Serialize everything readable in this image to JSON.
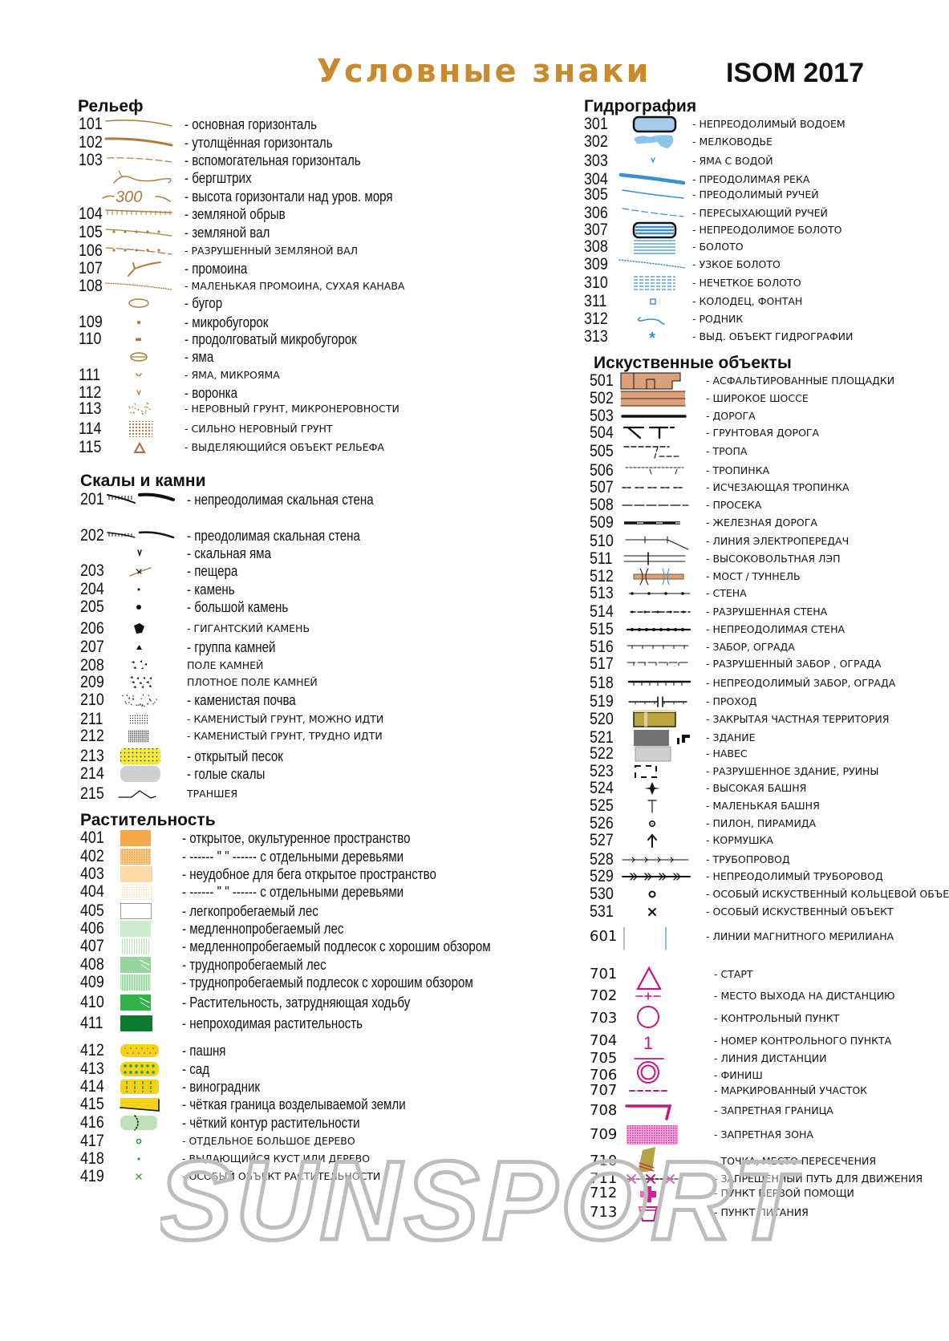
{
  "header": {
    "title": "Условные знаки",
    "standard": "ISOM 2017"
  },
  "watermark": "SUNSPORT",
  "colors": {
    "title": "#c98a2e",
    "relief": "#b07a3a",
    "water": "#3a8fcf",
    "course": "#c2187f",
    "text": "#111111"
  },
  "sections": {
    "relief": {
      "title": "Рельеф",
      "items": [
        {
          "num": "101",
          "icon": "contour",
          "text": "- основная горизонталь"
        },
        {
          "num": "102",
          "icon": "index-contour",
          "text": "- утолщённая горизонталь"
        },
        {
          "num": "103",
          "icon": "form-line",
          "text": "- вспомогательная горизонталь"
        },
        {
          "num": "",
          "icon": "slope-line",
          "text": "- бергштрих"
        },
        {
          "num": "",
          "icon": "contour-value",
          "label": "300",
          "text": "- высота горизонтали над уров. моря"
        },
        {
          "num": "104",
          "icon": "earth-bank",
          "text": "- земляной обрыв"
        },
        {
          "num": "105",
          "icon": "earth-wall",
          "text": "- земляной вал"
        },
        {
          "num": "106",
          "icon": "ruined-earth-wall",
          "text": "- РАЗРУШЕННЫЙ ЗЕМЛЯНОЙ ВАЛ"
        },
        {
          "num": "107",
          "icon": "erosion-gully",
          "text": "- промоина"
        },
        {
          "num": "108",
          "icon": "small-gully",
          "text": "- МАЛЕНЬКАЯ ПРОМОИНА, СУХАЯ КАНАВА"
        },
        {
          "num": "",
          "icon": "knoll",
          "text": "- бугор"
        },
        {
          "num": "109",
          "icon": "small-knoll",
          "text": "- микробугорок"
        },
        {
          "num": "110",
          "icon": "elongated-knoll",
          "text": "- продолговатый микробугорок"
        },
        {
          "num": "",
          "icon": "depression",
          "text": "- яма"
        },
        {
          "num": "111",
          "icon": "small-depression",
          "text": "- ЯМА, МИКРОЯМА"
        },
        {
          "num": "112",
          "icon": "pit",
          "text": "- воронка"
        },
        {
          "num": "113",
          "icon": "broken-ground",
          "text": "-  НЕРОВНЫЙ ГРУНТ, МИКРОНЕРОВНОСТИ"
        },
        {
          "num": "114",
          "icon": "very-broken-ground",
          "text": "-  СИЛЬНО НЕРОВНЫЙ ГРУНТ"
        },
        {
          "num": "115",
          "icon": "prominent-landform",
          "text": "-  ВЫДЕЛЯЮЩИЙСЯ ОБЪЕКТ РЕЛЬЕФА"
        }
      ]
    },
    "rocks": {
      "title": "Скалы и камни",
      "items": [
        {
          "num": "201",
          "icon": "impassable-cliff",
          "text": "- непреодолимая скальная стена"
        },
        {
          "num": "202",
          "icon": "passable-cliff",
          "text": "- преодолимая скальная стена"
        },
        {
          "num": "",
          "icon": "rocky-pit",
          "text": "- скальная яма"
        },
        {
          "num": "203",
          "icon": "cave",
          "text": "- пещера"
        },
        {
          "num": "204",
          "icon": "boulder",
          "text": "- камень"
        },
        {
          "num": "205",
          "icon": "large-boulder",
          "text": "- большой камень"
        },
        {
          "num": "206",
          "icon": "gigantic-boulder",
          "text": "- ГИГАНТСКИЙ КАМЕНЬ"
        },
        {
          "num": "207",
          "icon": "boulder-cluster",
          "text": "- группа камней"
        },
        {
          "num": "208",
          "icon": "boulder-field",
          "text": " ПОЛЕ КАМНЕЙ"
        },
        {
          "num": "209",
          "icon": "dense-boulder-field",
          "text": "ПЛОТНОЕ ПОЛЕ КАМНЕЙ"
        },
        {
          "num": "210",
          "icon": "stony-ground",
          "text": "- каменистая почва"
        },
        {
          "num": "211",
          "icon": "stony-ground-slow",
          "text": "- КАМЕНИСТЫЙ ГРУНТ, МОЖНО ИДТИ"
        },
        {
          "num": "212",
          "icon": "stony-ground-difficult",
          "text": "- КАМЕНИСТЫЙ ГРУНТ, ТРУДНО ИДТИ"
        },
        {
          "num": "213",
          "icon": "open-sand",
          "text": "- открытый песок"
        },
        {
          "num": "214",
          "icon": "bare-rock",
          "text": "- голые скалы"
        },
        {
          "num": "215",
          "icon": "trench",
          "text": " ТРАНШЕЯ"
        }
      ]
    },
    "vegetation": {
      "title": "Растительность",
      "items": [
        {
          "num": "401",
          "icon": "open-land",
          "text": "- открытое, окультуренное пространство"
        },
        {
          "num": "402",
          "icon": "open-land-trees",
          "text": "-  ------ \" \" ------ с отдельными деревьями"
        },
        {
          "num": "403",
          "icon": "rough-open-land",
          "text": "- неудобное для бега открытое пространство"
        },
        {
          "num": "404",
          "icon": "rough-open-land-trees",
          "text": "-  ------ \" \" ------ с отдельными деревьями"
        },
        {
          "num": "405",
          "icon": "forest",
          "text": "- легкопробегаемый лес"
        },
        {
          "num": "406",
          "icon": "vegetation-slow",
          "text": "- медленнопробегаемый лес"
        },
        {
          "num": "407",
          "icon": "undergrowth-slow",
          "text": "- медленнопробегаемый подлесок с хорошим обзором"
        },
        {
          "num": "408",
          "icon": "vegetation-walk",
          "text": "- труднопробегаемый лес"
        },
        {
          "num": "409",
          "icon": "undergrowth-walk",
          "text": "- труднопробегаемый подлесок с хорошим обзором"
        },
        {
          "num": "410",
          "icon": "vegetation-fight",
          "text": "- Растительность, затрудняющая ходьбу"
        },
        {
          "num": "411",
          "icon": "vegetation-impassable",
          "text": " - непроходимая растительность"
        },
        {
          "num": "412",
          "icon": "cultivated-land",
          "text": "- пашня"
        },
        {
          "num": "413",
          "icon": "orchard",
          "text": "- сад"
        },
        {
          "num": "414",
          "icon": "vineyard",
          "text": "- виноградник"
        },
        {
          "num": "415",
          "icon": "cultivation-boundary",
          "text": "- чёткая граница возделываемой земли"
        },
        {
          "num": "416",
          "icon": "vegetation-boundary",
          "text": "- чёткий контур растительности"
        },
        {
          "num": "417",
          "icon": "large-tree",
          "text": "- ОТДЕЛЬНОЕ БОЛЬШОЕ ДЕРЕВО"
        },
        {
          "num": "418",
          "icon": "bush",
          "text": "- ВЫДАЮЩИЙСЯ КУСТ ИЛИ ДЕРЕВО"
        },
        {
          "num": "419",
          "icon": "special-vegetation",
          "text": "- ОСОБЫЙ ОБЪЕКТ РАСТИТЕЛЬНОСТИ"
        }
      ]
    },
    "water": {
      "title": "Гидрография",
      "items": [
        {
          "num": "301",
          "icon": "uncrossable-water",
          "text": "- НЕПРЕОДОЛИМЫЙ ВОДОЕМ"
        },
        {
          "num": "302",
          "icon": "shallow-water",
          "text": "- МЕЛКОВОДЬЕ"
        },
        {
          "num": "303",
          "icon": "waterhole",
          "text": "- ЯМА С ВОДОЙ"
        },
        {
          "num": "304",
          "icon": "crossable-river",
          "text": "- ПРЕОДОЛИМАЯ РЕКА"
        },
        {
          "num": "305",
          "icon": "crossable-stream",
          "text": "- ПРЕОДОЛИМЫЙ РУЧЕЙ"
        },
        {
          "num": "306",
          "icon": "minor-water-channel",
          "text": "- ПЕРЕСЫХАЮЩИЙ РУЧЕЙ"
        },
        {
          "num": "307",
          "icon": "uncrossable-marsh",
          "text": "- НЕПРЕОДОЛИМОЕ БОЛОТО"
        },
        {
          "num": "308",
          "icon": "marsh",
          "text": "- БОЛОТО"
        },
        {
          "num": "309",
          "icon": "narrow-marsh",
          "text": "- УЗКОЕ БОЛОТО"
        },
        {
          "num": "310",
          "icon": "indistinct-marsh",
          "text": "- НЕЧЕТКОЕ БОЛОТО"
        },
        {
          "num": "311",
          "icon": "well",
          "text": "- КОЛОДЕЦ, ФОНТАН"
        },
        {
          "num": "312",
          "icon": "spring",
          "text": "- РОДНИК"
        },
        {
          "num": "313",
          "icon": "special-water-feature",
          "text": "- ВЫД. ОБЪЕКТ ГИДРОГРАФИИ"
        }
      ]
    },
    "manmade": {
      "title": "Искуственные объекты",
      "items": [
        {
          "num": "501",
          "icon": "paved-area",
          "text": "- АСФАЛЬТИРОВАННЫЕ ПЛОЩАДКИ"
        },
        {
          "num": "502",
          "icon": "wide-road",
          "text": "- ШИРОКОЕ ШОССЕ"
        },
        {
          "num": "503",
          "icon": "road",
          "text": "- ДОРОГА"
        },
        {
          "num": "504",
          "icon": "vehicle-track",
          "text": "- ГРУНТОВАЯ ДОРОГА"
        },
        {
          "num": "505",
          "icon": "footpath",
          "text": "- ТРОПА"
        },
        {
          "num": "506",
          "icon": "small-path",
          "text": "- ТРОПИНКА"
        },
        {
          "num": "507",
          "icon": "less-distinct-path",
          "text": "- ИСЧЕЗАЮЩАЯ ТРОПИНКА"
        },
        {
          "num": "508",
          "icon": "ride",
          "text": "- ПРОСЕКА"
        },
        {
          "num": "509",
          "icon": "railway",
          "text": "- ЖЕЛЕЗНАЯ ДОРОГА"
        },
        {
          "num": "510",
          "icon": "power-line",
          "text": "- ЛИНИЯ ЭЛЕКТРОПЕРЕДАЧ"
        },
        {
          "num": "511",
          "icon": "major-power-line",
          "text": "- ВЫСОКОВОЛЬТНАЯ ЛЭП"
        },
        {
          "num": "512",
          "icon": "bridge-tunnel",
          "text": "- МОСТ / ТУННЕЛЬ"
        },
        {
          "num": "513",
          "icon": "wall",
          "text": "- СТЕНА"
        },
        {
          "num": "514",
          "icon": "ruined-wall",
          "text": "- РАЗРУШЕННАЯ СТЕНА"
        },
        {
          "num": "515",
          "icon": "impassable-wall",
          "text": "- НЕПРЕОДОЛИМАЯ СТЕНА"
        },
        {
          "num": "516",
          "icon": "fence",
          "text": "- ЗАБОР, ОГРАДА"
        },
        {
          "num": "517",
          "icon": "ruined-fence",
          "text": "- РАЗРУШЕННЫЙ ЗАБОР , ОГРАДА"
        },
        {
          "num": "518",
          "icon": "impassable-fence",
          "text": "- НЕПРЕОДОЛИМЫЙ ЗАБОР, ОГРАДА"
        },
        {
          "num": "519",
          "icon": "crossing-point",
          "text": "- ПРОХОД"
        },
        {
          "num": "520",
          "icon": "out-of-bounds-area",
          "text": "- ЗАКРЫТАЯ ЧАСТНАЯ ТЕРРИТОРИЯ"
        },
        {
          "num": "521",
          "icon": "building",
          "text": "- ЗДАНИЕ"
        },
        {
          "num": "522",
          "icon": "canopy",
          "text": "- НАВЕС"
        },
        {
          "num": "523",
          "icon": "ruin",
          "text": "- РАЗРУШЕННОЕ ЗДАНИЕ, РУИНЫ"
        },
        {
          "num": "524",
          "icon": "high-tower",
          "text": "- ВЫСОКАЯ БАШНЯ"
        },
        {
          "num": "525",
          "icon": "small-tower",
          "text": "- МАЛЕНЬКАЯ БАШНЯ"
        },
        {
          "num": "526",
          "icon": "cairn",
          "text": "- ПИЛОН, ПИРАМИДА"
        },
        {
          "num": "527",
          "icon": "fodder-rack",
          "text": "- КОРМУШКА"
        },
        {
          "num": "528",
          "icon": "pipeline",
          "text": "- ТРУБОПРОВОД"
        },
        {
          "num": "529",
          "icon": "impassable-pipeline",
          "text": "- НЕПРЕОДОЛИМЫЙ ТРУБОРОВОД"
        },
        {
          "num": "530",
          "icon": "special-manmade-ring",
          "text": "- ОСОБЫЙ ИСКУСТВЕННЫЙ КОЛЬЦЕВОЙ ОБЪЕКТ"
        },
        {
          "num": "531",
          "icon": "special-manmade-cross",
          "text": "- ОСОБЫЙ ИСКУСТВЕННЫЙ ОБЪЕКТ"
        },
        {
          "num": "601",
          "icon": "magnetic-north-lines",
          "text": "- ЛИНИИ МАГНИТНОГО МЕРИЛИАНА"
        }
      ]
    },
    "course": {
      "title": "",
      "items": [
        {
          "num": "701",
          "icon": "start",
          "text": "- СТАРТ"
        },
        {
          "num": "702",
          "icon": "map-issue-point",
          "text": "- МЕСТО ВЫХОДА НА ДИСТАНЦИЮ"
        },
        {
          "num": "703",
          "icon": "control-point",
          "text": "- КОНТРОЛЬНЫЙ ПУНКТ"
        },
        {
          "num": "704",
          "icon": "control-number",
          "label": "1",
          "text": "- НОМЕР КОНТРОЛЬНОГО ПУНКТА"
        },
        {
          "num": "705",
          "icon": "course-line",
          "text": "- ЛИНИЯ ДИСТАНЦИИ"
        },
        {
          "num": "706",
          "icon": "finish",
          "text": "- ФИНИШ"
        },
        {
          "num": "707",
          "icon": "marked-route",
          "text": "- МАРКИРОВАННЫЙ УЧАСТОК"
        },
        {
          "num": "708",
          "icon": "out-of-bounds-boundary",
          "text": "- ЗАПРЕТНАЯ ГРАНИЦА"
        },
        {
          "num": "709",
          "icon": "out-of-bounds-zone",
          "text": "- ЗАПРЕТНАЯ ЗОНА"
        },
        {
          "num": "710",
          "icon": "crossing-point-course",
          "text": "- ТОЧКА, МЕСТО ПЕРЕСЕЧЕНИЯ"
        },
        {
          "num": "711",
          "icon": "forbidden-route",
          "text": "- ЗАПРЕЩЕННЫЙ ПУТЬ ДЛЯ ДВИЖЕНИЯ"
        },
        {
          "num": "712",
          "icon": "first-aid",
          "text": "- ПУНКТ ПЕРВОЙ ПОМОЩИ"
        },
        {
          "num": "713",
          "icon": "refreshment-point",
          "text": "- ПУНКТ ПИТАНИЯ"
        }
      ]
    }
  }
}
